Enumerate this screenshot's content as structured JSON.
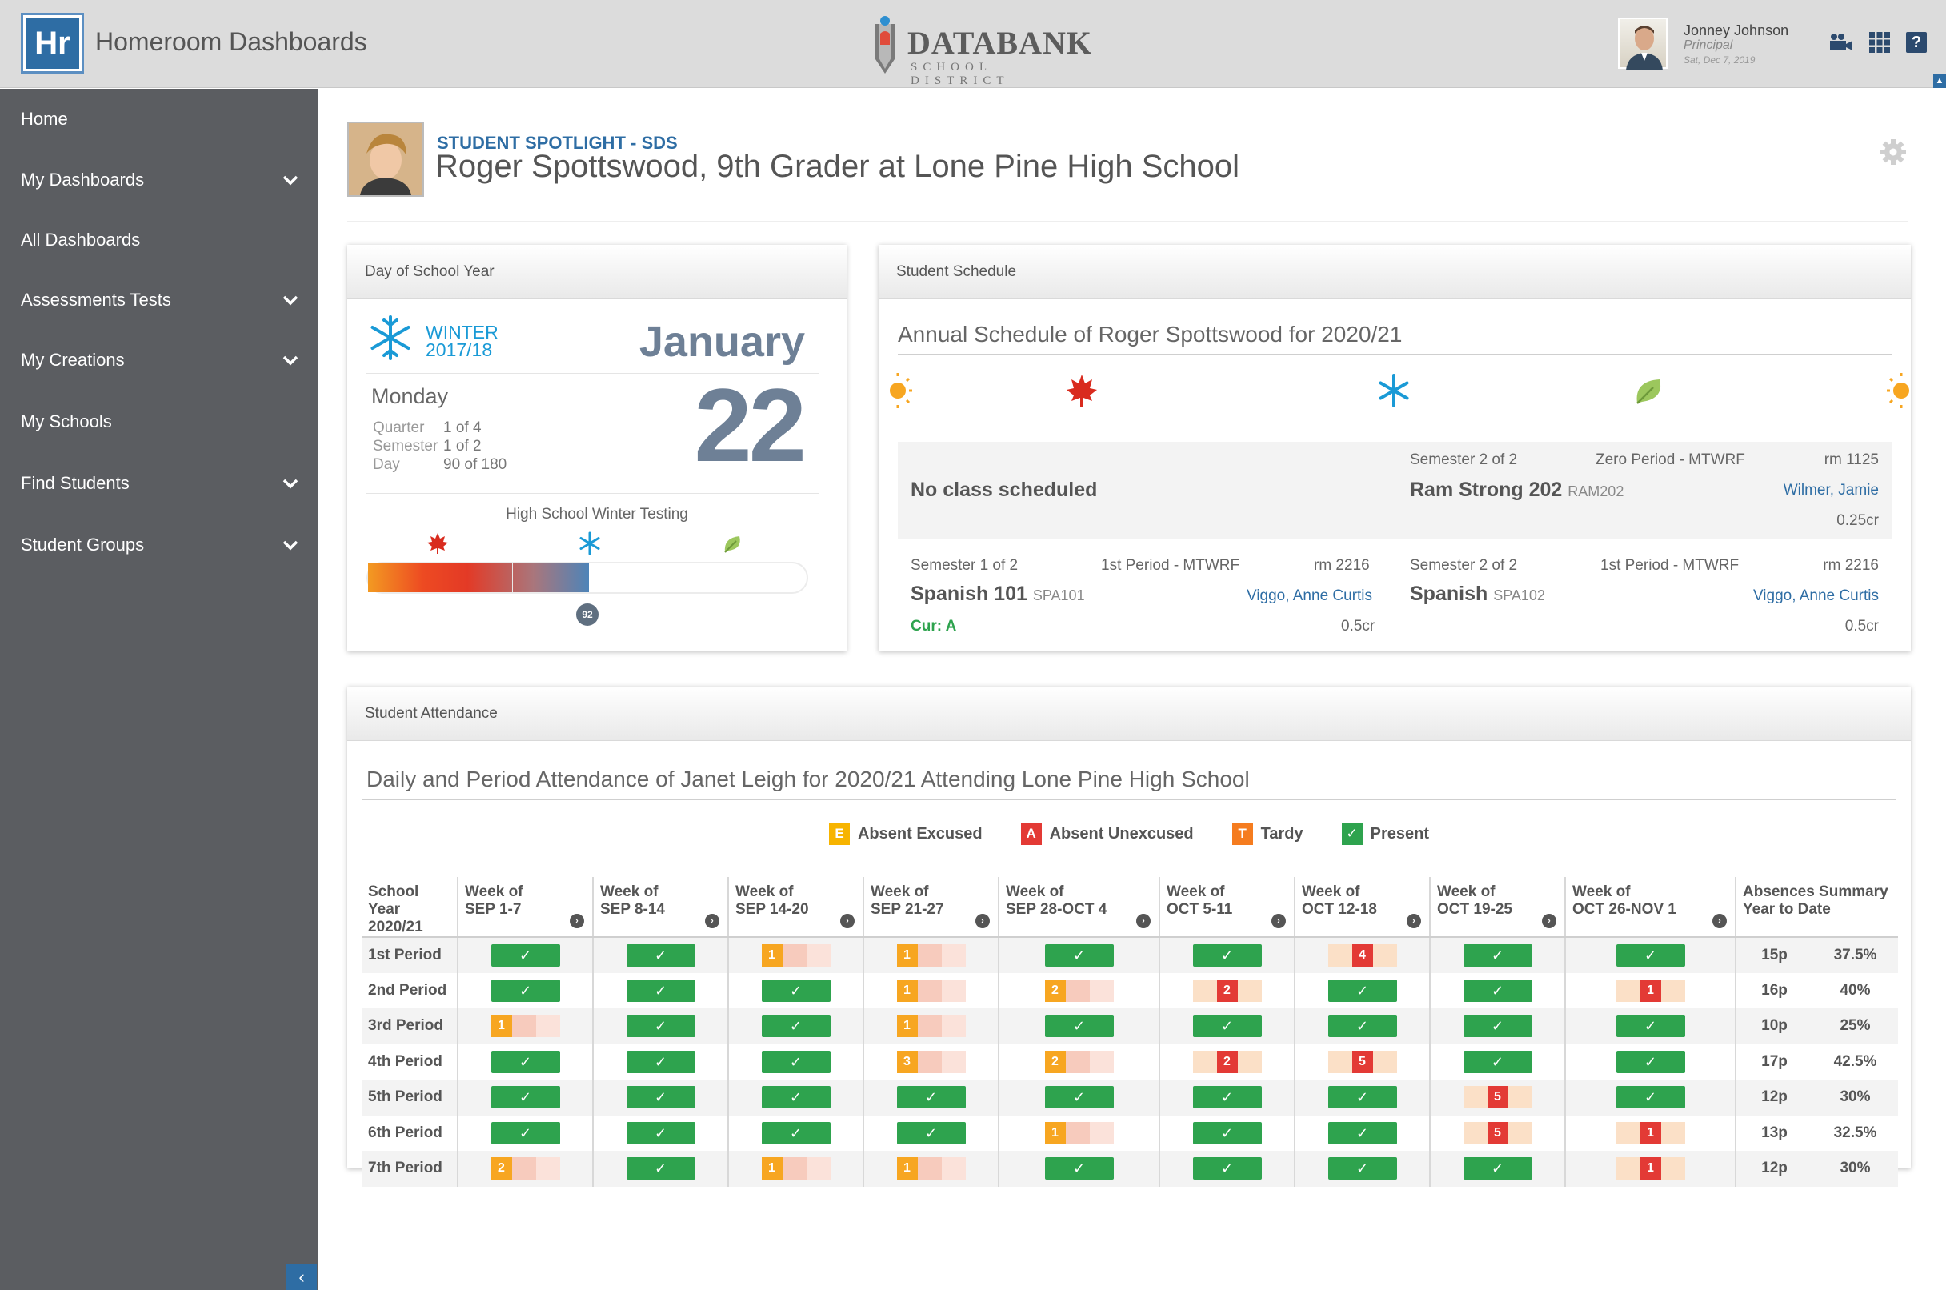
{
  "app": {
    "logo": "Hr",
    "title": "Homeroom Dashboards"
  },
  "brand": {
    "name": "DATABANK",
    "sub": "SCHOOL DISTRICT"
  },
  "user": {
    "name": "Jonney Johnson",
    "role": "Principal",
    "date": "Sat, Dec 7, 2019"
  },
  "header_icons": [
    "video-camera-icon",
    "apps-grid-icon",
    "help-icon"
  ],
  "help_label": "?",
  "sidebar": {
    "items": [
      {
        "label": "Home",
        "expand": false
      },
      {
        "label": "My Dashboards",
        "expand": true
      },
      {
        "label": "All Dashboards",
        "expand": false
      },
      {
        "label": "Assessments Tests",
        "expand": true
      },
      {
        "label": "My Creations",
        "expand": true
      },
      {
        "label": "My Schools",
        "expand": false
      },
      {
        "label": "Find Students",
        "expand": true
      },
      {
        "label": "Student Groups",
        "expand": true
      }
    ]
  },
  "spotlight": {
    "label": "STUDENT SPOTLIGHT - SDS",
    "title": "Roger Spottswood, 9th Grader at Lone Pine High School"
  },
  "day_card": {
    "heading": "Day of School Year",
    "season": "WINTER",
    "season_year": "2017/18",
    "month": "January",
    "weekday": "Monday",
    "day": "22",
    "quarter_label": "Quarter",
    "quarter": "1 of 4",
    "semester_label": "Semester",
    "semester": "1 of 2",
    "day_label": "Day",
    "day_of_year": "90 of 180",
    "testing_label": "High School Winter Testing",
    "progress_marker": "92",
    "progress_fraction": 0.5
  },
  "schedule": {
    "heading": "Student Schedule",
    "title": "Annual Schedule of Roger Spottswood for 2020/21",
    "no_class": "No class scheduled",
    "zero": {
      "semester": "Semester 2 of 2",
      "period": "Zero Period - MTWRF",
      "room": "rm 1125",
      "course": "Ram Strong 202",
      "code": "RAM202",
      "teacher": "Wilmer, Jamie",
      "credits": "0.25cr"
    },
    "first_s1": {
      "semester": "Semester 1 of 2",
      "period": "1st Period - MTWRF",
      "room": "rm 2216",
      "course": "Spanish 101",
      "code": "SPA101",
      "teacher": "Viggo, Anne Curtis",
      "credits": "0.5cr",
      "grade": "Cur: A"
    },
    "first_s2": {
      "semester": "Semester 2 of 2",
      "period": "1st Period - MTWRF",
      "room": "rm 2216",
      "course": "Spanish",
      "code": "SPA102",
      "teacher": "Viggo, Anne Curtis",
      "credits": "0.5cr"
    }
  },
  "attendance": {
    "heading": "Student Attendance",
    "title": "Daily and Period Attendance of Janet Leigh for 2020/21 Attending Lone Pine High School",
    "legend": [
      {
        "code": "E",
        "label": "Absent Excused",
        "color": "#f7b400"
      },
      {
        "code": "A",
        "label": "Absent Unexcused",
        "color": "#e33a35"
      },
      {
        "code": "T",
        "label": "Tardy",
        "color": "#f57c1f"
      },
      {
        "code": "✓",
        "label": "Present",
        "color": "#2ea34e"
      }
    ],
    "col0_line1": "School Year",
    "col0_line2": "2020/21",
    "weeks": [
      {
        "l1": "Week of",
        "l2": "SEP 1-7"
      },
      {
        "l1": "Week of",
        "l2": "SEP 8-14"
      },
      {
        "l1": "Week of",
        "l2": "SEP 14-20"
      },
      {
        "l1": "Week of",
        "l2": "SEP 21-27"
      },
      {
        "l1": "Week of",
        "l2": "SEP 28-OCT 4"
      },
      {
        "l1": "Week of",
        "l2": "OCT 5-11"
      },
      {
        "l1": "Week of",
        "l2": "OCT 12-18"
      },
      {
        "l1": "Week of",
        "l2": "OCT 19-25"
      },
      {
        "l1": "Week of",
        "l2": "OCT 26-NOV 1"
      }
    ],
    "summary_line1": "Absences Summary",
    "summary_line2": "Year to Date",
    "rows": [
      {
        "period": "1st Period",
        "cells": [
          "P",
          "P",
          "T1",
          "T1",
          "P",
          "P",
          "U4",
          "P",
          "P"
        ],
        "count": "15p",
        "pct": "37.5%"
      },
      {
        "period": "2nd Period",
        "cells": [
          "P",
          "P",
          "P",
          "T1",
          "T2",
          "U2",
          "P",
          "P",
          "U1"
        ],
        "count": "16p",
        "pct": "40%"
      },
      {
        "period": "3rd Period",
        "cells": [
          "T1",
          "P",
          "P",
          "T1",
          "P",
          "P",
          "P",
          "P",
          "P"
        ],
        "count": "10p",
        "pct": "25%"
      },
      {
        "period": "4th Period",
        "cells": [
          "P",
          "P",
          "P",
          "T3",
          "T2",
          "U2",
          "U5",
          "P",
          "P"
        ],
        "count": "17p",
        "pct": "42.5%"
      },
      {
        "period": "5th Period",
        "cells": [
          "P",
          "P",
          "P",
          "P",
          "P",
          "P",
          "P",
          "U5",
          "P"
        ],
        "count": "12p",
        "pct": "30%"
      },
      {
        "period": "6th Period",
        "cells": [
          "P",
          "P",
          "P",
          "P",
          "T1",
          "P",
          "P",
          "U5",
          "U1"
        ],
        "count": "13p",
        "pct": "32.5%"
      },
      {
        "period": "7th Period",
        "cells": [
          "T2",
          "P",
          "T1",
          "T1",
          "P",
          "P",
          "P",
          "P",
          "U1"
        ],
        "count": "12p",
        "pct": "30%"
      }
    ]
  }
}
